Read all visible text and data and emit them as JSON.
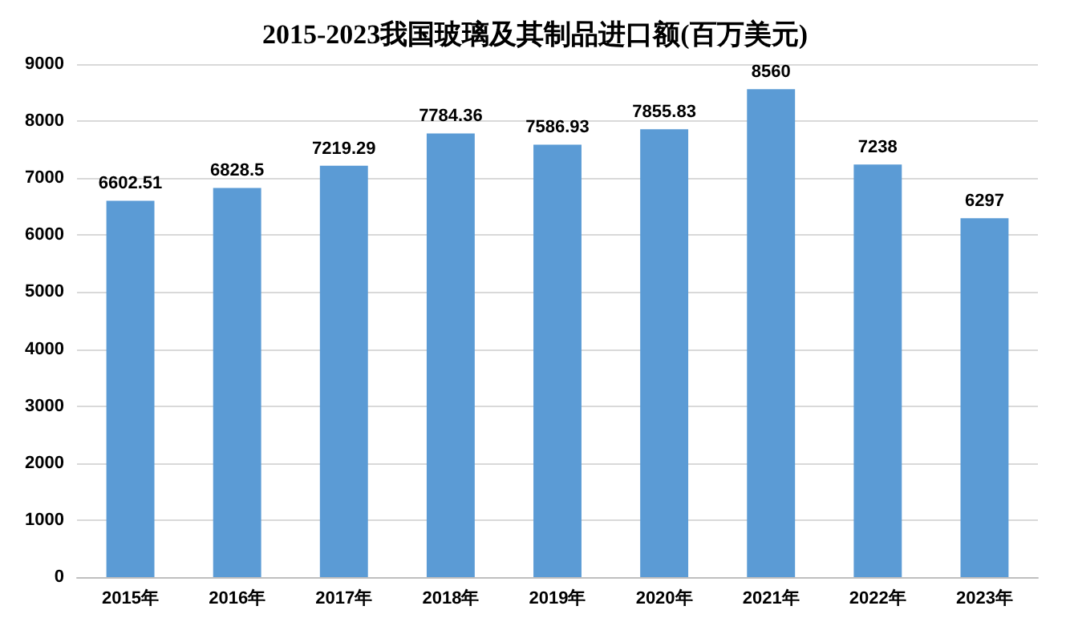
{
  "chart_data": {
    "type": "bar",
    "title": "2015-2023我国玻璃及其制品进口额(百万美元)",
    "categories": [
      "2015年",
      "2016年",
      "2017年",
      "2018年",
      "2019年",
      "2020年",
      "2021年",
      "2022年",
      "2023年"
    ],
    "values": [
      6602.51,
      6828.5,
      7219.29,
      7784.36,
      7586.93,
      7855.83,
      8560,
      7238,
      6297
    ],
    "color": "#5b9bd5",
    "ylim": [
      0,
      9000
    ],
    "yticks": [
      0,
      1000,
      2000,
      3000,
      4000,
      5000,
      6000,
      7000,
      8000,
      9000
    ],
    "grid": "y",
    "data_labels": true
  }
}
